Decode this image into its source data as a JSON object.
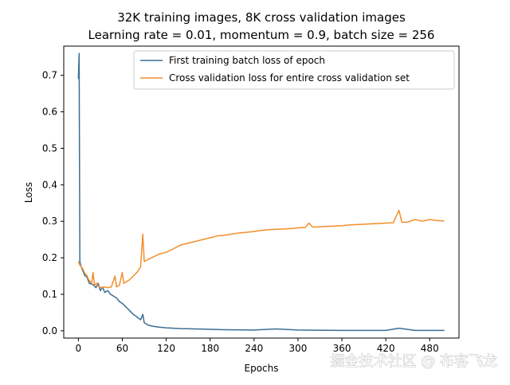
{
  "chart_data": {
    "type": "line",
    "title_lines": [
      "32K training images, 8K cross validation images",
      "Learning rate = 0.01, momentum = 0.9, batch size = 256"
    ],
    "xlabel": "Epochs",
    "ylabel": "Loss",
    "xlim": [
      -20,
      520
    ],
    "ylim": [
      -0.02,
      0.78
    ],
    "xticks": [
      0,
      60,
      120,
      180,
      240,
      300,
      360,
      420,
      480
    ],
    "yticks": [
      0.0,
      0.1,
      0.2,
      0.3,
      0.4,
      0.5,
      0.6,
      0.7
    ],
    "ytick_labels": [
      "0.0",
      "0.1",
      "0.2",
      "0.3",
      "0.4",
      "0.5",
      "0.6",
      "0.7"
    ],
    "grid": false,
    "legend_position": "upper-right",
    "series": [
      {
        "name": "First training batch loss of epoch",
        "color": "#3b6e93",
        "points": [
          [
            0,
            0.69
          ],
          [
            1,
            0.76
          ],
          [
            2,
            0.19
          ],
          [
            3,
            0.18
          ],
          [
            4,
            0.175
          ],
          [
            5,
            0.17
          ],
          [
            7,
            0.16
          ],
          [
            9,
            0.15
          ],
          [
            11,
            0.15
          ],
          [
            13,
            0.14
          ],
          [
            15,
            0.13
          ],
          [
            18,
            0.128
          ],
          [
            21,
            0.125
          ],
          [
            24,
            0.118
          ],
          [
            27,
            0.13
          ],
          [
            30,
            0.11
          ],
          [
            33,
            0.12
          ],
          [
            36,
            0.105
          ],
          [
            40,
            0.11
          ],
          [
            44,
            0.1
          ],
          [
            48,
            0.095
          ],
          [
            52,
            0.09
          ],
          [
            56,
            0.08
          ],
          [
            60,
            0.075
          ],
          [
            65,
            0.065
          ],
          [
            70,
            0.055
          ],
          [
            75,
            0.045
          ],
          [
            80,
            0.038
          ],
          [
            85,
            0.03
          ],
          [
            88,
            0.045
          ],
          [
            90,
            0.022
          ],
          [
            95,
            0.016
          ],
          [
            100,
            0.013
          ],
          [
            110,
            0.01
          ],
          [
            120,
            0.008
          ],
          [
            140,
            0.006
          ],
          [
            160,
            0.005
          ],
          [
            180,
            0.004
          ],
          [
            200,
            0.003
          ],
          [
            240,
            0.002
          ],
          [
            270,
            0.005
          ],
          [
            300,
            0.002
          ],
          [
            360,
            0.001
          ],
          [
            420,
            0.001
          ],
          [
            438,
            0.007
          ],
          [
            460,
            0.001
          ],
          [
            500,
            0.001
          ]
        ]
      },
      {
        "name": "Cross validation loss for entire cross validation set",
        "color": "#f28e2b",
        "points": [
          [
            0,
            0.19
          ],
          [
            2,
            0.18
          ],
          [
            4,
            0.175
          ],
          [
            6,
            0.17
          ],
          [
            8,
            0.16
          ],
          [
            10,
            0.155
          ],
          [
            12,
            0.15
          ],
          [
            14,
            0.14
          ],
          [
            16,
            0.135
          ],
          [
            18,
            0.13
          ],
          [
            20,
            0.16
          ],
          [
            22,
            0.125
          ],
          [
            25,
            0.13
          ],
          [
            28,
            0.12
          ],
          [
            32,
            0.118
          ],
          [
            36,
            0.12
          ],
          [
            40,
            0.118
          ],
          [
            45,
            0.12
          ],
          [
            50,
            0.15
          ],
          [
            52,
            0.12
          ],
          [
            56,
            0.125
          ],
          [
            60,
            0.16
          ],
          [
            62,
            0.13
          ],
          [
            66,
            0.135
          ],
          [
            70,
            0.14
          ],
          [
            75,
            0.15
          ],
          [
            80,
            0.16
          ],
          [
            85,
            0.175
          ],
          [
            88,
            0.265
          ],
          [
            90,
            0.19
          ],
          [
            95,
            0.195
          ],
          [
            100,
            0.2
          ],
          [
            110,
            0.21
          ],
          [
            120,
            0.215
          ],
          [
            130,
            0.225
          ],
          [
            140,
            0.235
          ],
          [
            150,
            0.24
          ],
          [
            160,
            0.245
          ],
          [
            170,
            0.25
          ],
          [
            180,
            0.255
          ],
          [
            190,
            0.26
          ],
          [
            200,
            0.262
          ],
          [
            210,
            0.265
          ],
          [
            220,
            0.268
          ],
          [
            230,
            0.27
          ],
          [
            240,
            0.272
          ],
          [
            250,
            0.275
          ],
          [
            260,
            0.277
          ],
          [
            270,
            0.278
          ],
          [
            280,
            0.279
          ],
          [
            290,
            0.28
          ],
          [
            300,
            0.282
          ],
          [
            310,
            0.283
          ],
          [
            315,
            0.295
          ],
          [
            320,
            0.284
          ],
          [
            330,
            0.285
          ],
          [
            340,
            0.286
          ],
          [
            350,
            0.287
          ],
          [
            360,
            0.288
          ],
          [
            370,
            0.29
          ],
          [
            380,
            0.291
          ],
          [
            390,
            0.292
          ],
          [
            400,
            0.293
          ],
          [
            410,
            0.294
          ],
          [
            420,
            0.295
          ],
          [
            430,
            0.296
          ],
          [
            438,
            0.33
          ],
          [
            442,
            0.297
          ],
          [
            450,
            0.298
          ],
          [
            460,
            0.305
          ],
          [
            470,
            0.3
          ],
          [
            480,
            0.305
          ],
          [
            490,
            0.302
          ],
          [
            500,
            0.301
          ]
        ]
      }
    ]
  },
  "watermark": "掘金技术社区 @ 布客飞龙"
}
